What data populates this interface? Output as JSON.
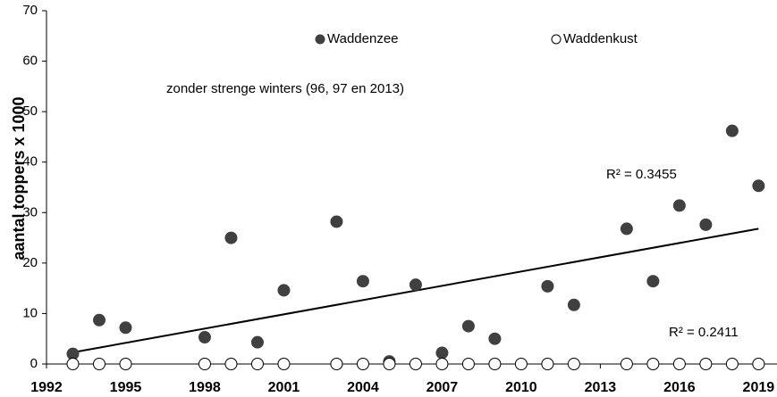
{
  "chart_data": {
    "type": "scatter",
    "y_label": "aantal toppers x 1000",
    "annotation": "zonder strenge winters (96, 97 en 2013)",
    "r2_labels": [
      "R² = 0.3455",
      "R² = 0.2411"
    ],
    "xlim": [
      1992,
      2019.7
    ],
    "xticks": [
      1992,
      1995,
      1998,
      2001,
      2004,
      2007,
      2010,
      2013,
      2016,
      2019
    ],
    "ylim": [
      0,
      70
    ],
    "yticks": [
      0,
      10,
      20,
      30,
      40,
      50,
      60,
      70
    ],
    "series": [
      {
        "name": "Waddenzee",
        "color": "#404040",
        "filled": true,
        "x": [
          1993,
          1994,
          1995,
          1998,
          1999,
          2000,
          2001,
          2003,
          2004,
          2005,
          2006,
          2007,
          2008,
          2009,
          2011,
          2012,
          2014,
          2015,
          2016,
          2017,
          2018,
          2019
        ],
        "values": [
          2,
          8.7,
          7.2,
          5.3,
          25,
          4.3,
          14.6,
          28.2,
          16.4,
          0.5,
          15.7,
          2.2,
          7.5,
          5,
          15.4,
          11.7,
          26.8,
          16.4,
          31.4,
          27.6,
          46.2,
          35.3
        ]
      },
      {
        "name": "Waddenkust",
        "color": "#000000",
        "filled": false,
        "x": [
          1993,
          1994,
          1995,
          1998,
          1999,
          2000,
          2001,
          2003,
          2004,
          2005,
          2006,
          2007,
          2008,
          2009,
          2010,
          2011,
          2012,
          2014,
          2015,
          2016,
          2017,
          2018,
          2019
        ],
        "values": [
          0,
          0,
          0,
          0,
          0,
          0,
          0,
          0,
          0,
          0,
          0,
          0,
          0,
          0,
          0,
          0,
          0,
          0,
          0,
          0,
          0,
          0,
          0
        ]
      }
    ],
    "trendline": {
      "x": [
        1993,
        2019
      ],
      "values": [
        2.3,
        26.8
      ]
    }
  }
}
